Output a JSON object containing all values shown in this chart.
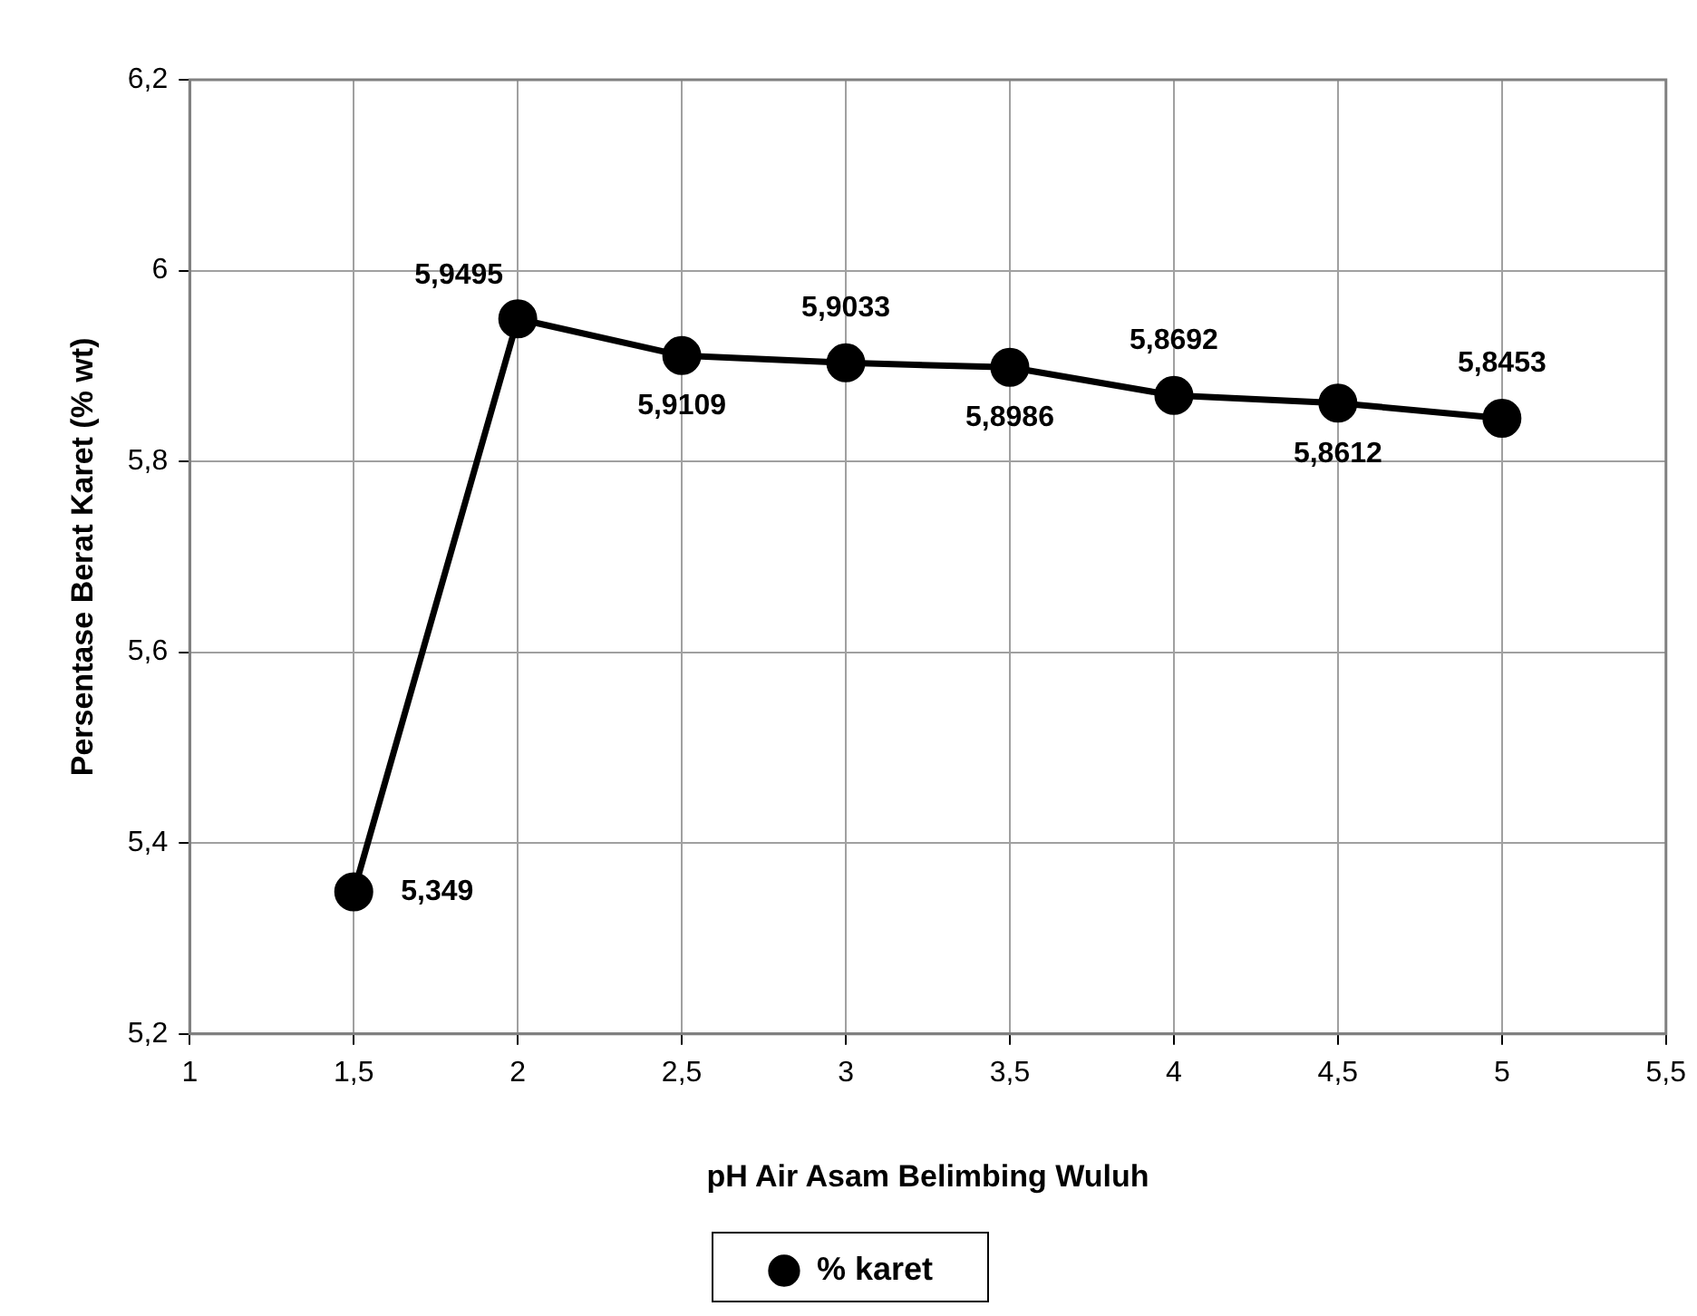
{
  "chart_data": {
    "type": "line",
    "xlabel": "pH Air Asam Belimbing Wuluh",
    "ylabel": "Persentase Berat Karet (% wt)",
    "x": [
      1.5,
      2,
      2.5,
      3,
      3.5,
      4,
      4.5,
      5
    ],
    "series": [
      {
        "name": "% karet",
        "color": "#000000",
        "values": [
          5.349,
          5.9495,
          5.9109,
          5.9033,
          5.8986,
          5.8692,
          5.8612,
          5.8453
        ]
      }
    ],
    "xlim": [
      1,
      5.5
    ],
    "xticks": [
      1,
      {
        "value": 1.5,
        "label": "1,5"
      },
      2,
      {
        "value": 2.5,
        "label": "2,5"
      },
      3,
      {
        "value": 3.5,
        "label": "3,5"
      },
      4,
      {
        "value": 4.5,
        "label": "4,5"
      },
      5,
      {
        "value": 5.5,
        "label": "5,5"
      }
    ],
    "ylim": [
      5.2,
      6.2
    ],
    "yticks": [
      {
        "value": 5.2,
        "label": "5,2"
      },
      {
        "value": 5.4,
        "label": "5,4"
      },
      {
        "value": 5.6,
        "label": "5,6"
      },
      {
        "value": 5.8,
        "label": "5,8"
      },
      6,
      {
        "value": 6.2,
        "label": "6,2"
      }
    ],
    "value_labels": [
      "5,349",
      "5,9495",
      "5,9109",
      "5,9033",
      "5,8986",
      "5,8692",
      "5,8612",
      "5,8453"
    ],
    "grid": true,
    "legend": "bottom",
    "marker": "circle",
    "line_style": "solid"
  }
}
